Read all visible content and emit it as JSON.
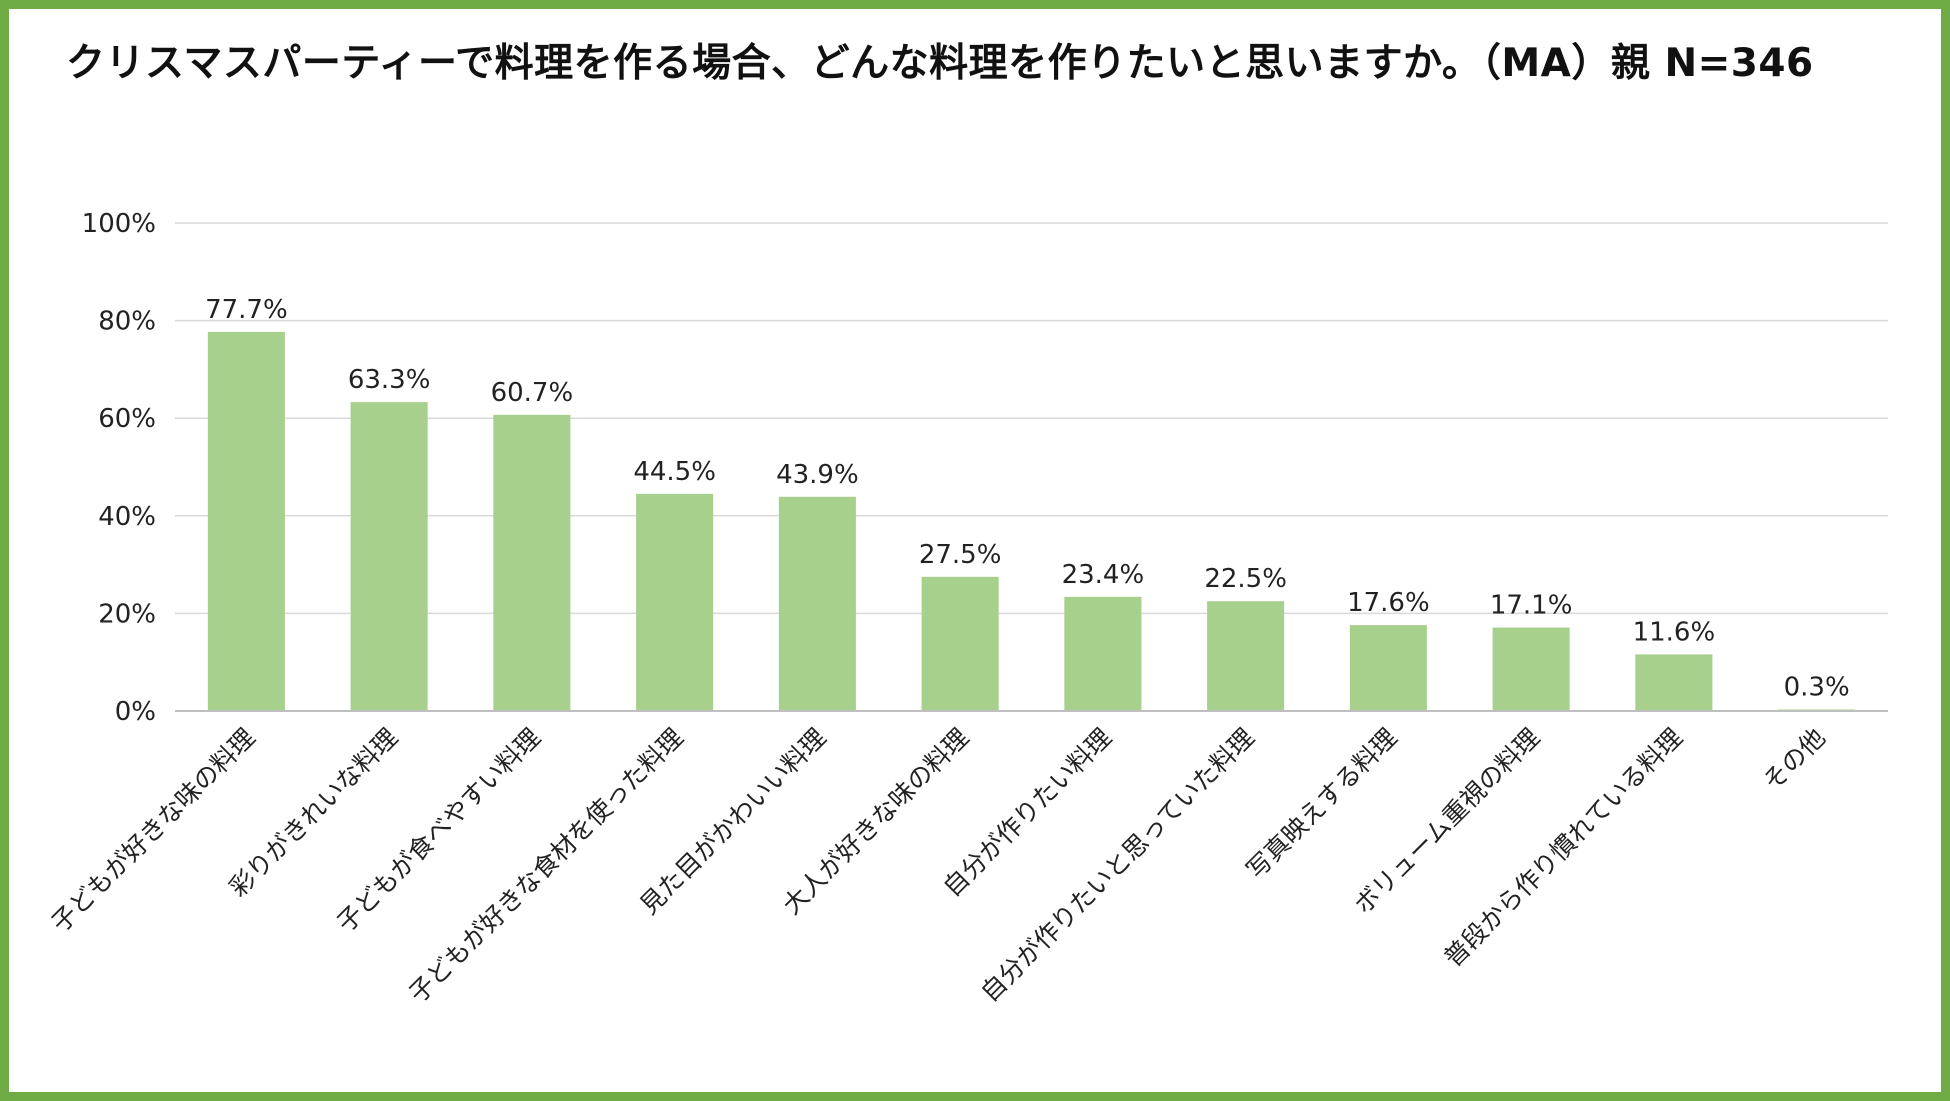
{
  "title": "クリスマスパーティーで料理を作る場合、どんな料理を作りたいと思いますか。（MA）親 N=346",
  "colors": {
    "border": "#6fac46",
    "bar": "#a8d08d",
    "grid": "#d9d9d9",
    "axis": "#bfbfbf"
  },
  "chart_data": {
    "type": "bar",
    "title": "クリスマスパーティーで料理を作る場合、どんな料理を作りたいと思いますか。（MA）親 N=346",
    "xlabel": "",
    "ylabel": "",
    "ylim": [
      0,
      100
    ],
    "yticks": [
      "0%",
      "20%",
      "40%",
      "60%",
      "80%",
      "100%"
    ],
    "grid": true,
    "categories": [
      "子どもが好きな味の料理",
      "彩りがきれいな料理",
      "子どもが食べやすい料理",
      "子どもが好きな食材を使った料理",
      "見た目がかわいい料理",
      "大人が好きな味の料理",
      "自分が作りたい料理",
      "自分が作りたいと思っていた料理",
      "写真映えする料理",
      "ボリューム重視の料理",
      "普段から作り慣れている料理",
      "その他"
    ],
    "values": [
      77.7,
      63.3,
      60.7,
      44.5,
      43.9,
      27.5,
      23.4,
      22.5,
      17.6,
      17.1,
      11.6,
      0.3
    ],
    "data_labels": [
      "77.7%",
      "63.3%",
      "60.7%",
      "44.5%",
      "43.9%",
      "27.5%",
      "23.4%",
      "22.5%",
      "17.6%",
      "17.1%",
      "11.6%",
      "0.3%"
    ]
  }
}
